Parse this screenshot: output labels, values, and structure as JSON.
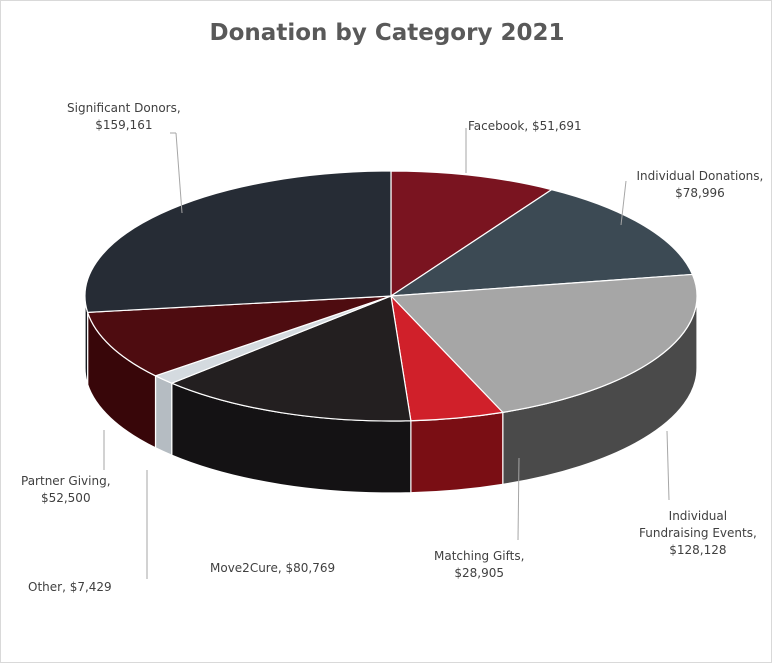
{
  "chart_data": {
    "type": "pie",
    "title": "Donation by Category 2021",
    "categories": [
      "Facebook",
      "Individual Donations",
      "Individual Fundraising Events",
      "Matching Gifts",
      "Move2Cure",
      "Other",
      "Partner Giving",
      "Significant Donors"
    ],
    "values": [
      51691,
      78996,
      128128,
      28905,
      80769,
      7429,
      52500,
      159161
    ],
    "data_labels": [
      {
        "line1": "Facebook,  $51,691",
        "line2": ""
      },
      {
        "line1": "Individual Donations,",
        "line2": "$78,996"
      },
      {
        "line1": "Individual",
        "line2": "Fundraising Events,",
        "line3": "$128,128"
      },
      {
        "line1": "Matching Gifts,",
        "line2": "$28,905"
      },
      {
        "line1": "Move2Cure,  $80,769",
        "line2": ""
      },
      {
        "line1": "Other,  $7,429",
        "line2": ""
      },
      {
        "line1": "Partner Giving,",
        "line2": "$52,500"
      },
      {
        "line1": "Significant Donors,",
        "line2": "$159,161"
      }
    ],
    "colors": [
      "#7a1420",
      "#3c4a54",
      "#a6a6a6",
      "#d0202a",
      "#231f20",
      "#d4dadf",
      "#4e0c10",
      "#262c35"
    ],
    "side_colors": [
      "#5a0e16",
      "#2a343b",
      "#4a4a4a",
      "#7a0e14",
      "#141214",
      "#b5bcc2",
      "#380609",
      "#181c22"
    ],
    "start_angle_deg": -90,
    "three_d": true
  }
}
